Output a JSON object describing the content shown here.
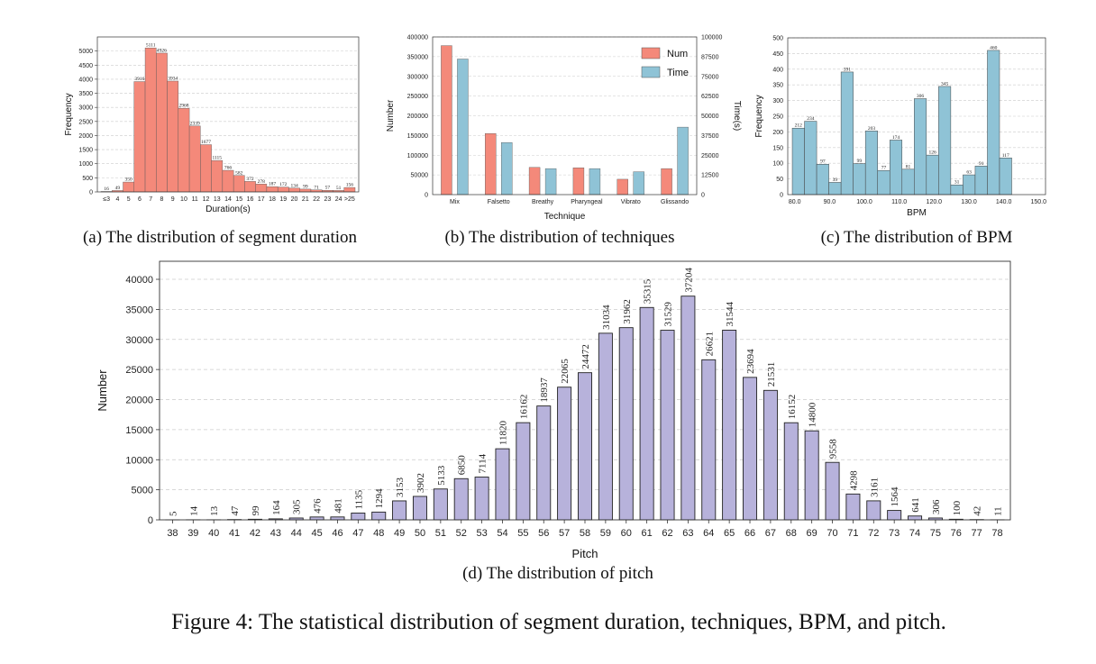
{
  "figure_caption": "Figure 4:  The statistical distribution of segment duration, techniques, BPM, and pitch.",
  "chart_data": [
    {
      "id": "a",
      "type": "bar",
      "caption": "(a) The distribution of segment duration",
      "xlabel": "Duration(s)",
      "ylabel": "Frequency",
      "ylim": [
        0,
        5500
      ],
      "yticks": [
        0,
        500,
        1000,
        1500,
        2000,
        2500,
        3000,
        3500,
        4000,
        4500,
        5000
      ],
      "categories": [
        "≤3",
        "4",
        "5",
        "6",
        "7",
        "8",
        "9",
        "10",
        "11",
        "12",
        "13",
        "14",
        "15",
        "16",
        "17",
        "18",
        "19",
        "20",
        "21",
        "22",
        "23",
        "24",
        ">25"
      ],
      "values": [
        16,
        49,
        350,
        3916,
        5111,
        4926,
        3934,
        2968,
        2339,
        1677,
        1115,
        766,
        582,
        372,
        278,
        187,
        172,
        134,
        99,
        71,
        57,
        51,
        156
      ],
      "color": "#F4897A",
      "grid": true
    },
    {
      "id": "b",
      "type": "bar",
      "caption": "(b) The distribution of techniques",
      "xlabel": "Technique",
      "ylabel": "Number",
      "y2label": "Time(s)",
      "ylim": [
        0,
        400000
      ],
      "y2lim": [
        0,
        100000
      ],
      "yticks": [
        0,
        50000,
        100000,
        150000,
        200000,
        250000,
        300000,
        350000,
        400000
      ],
      "y2ticks": [
        0,
        12500,
        25000,
        37500,
        50000,
        62500,
        75000,
        87500,
        100000
      ],
      "categories": [
        "Mix",
        "Falsetto",
        "Breathy",
        "Pharyngeal",
        "Vibrato",
        "Glissando"
      ],
      "series": [
        {
          "name": "Num",
          "axis": "left",
          "color": "#F4897A",
          "values": [
            378000,
            155000,
            69000,
            68000,
            39000,
            66000
          ]
        },
        {
          "name": "Time",
          "axis": "right",
          "color": "#8FC3D6",
          "values": [
            86000,
            33000,
            16500,
            16500,
            14500,
            42800
          ]
        }
      ],
      "legend": "top-right",
      "grid": true
    },
    {
      "id": "c",
      "type": "bar",
      "caption": "(c) The distribution of BPM",
      "xlabel": "BPM",
      "ylabel": "Frequency",
      "xlim": [
        78,
        152
      ],
      "ylim": [
        0,
        500
      ],
      "yticks": [
        0,
        50,
        100,
        150,
        200,
        250,
        300,
        350,
        400,
        450,
        500
      ],
      "xticks": [
        "80.0",
        "90.0",
        "100.0",
        "110.0",
        "120.0",
        "130.0",
        "140.0",
        "150.0"
      ],
      "bin_start": 79.3,
      "bin_width": 3.5,
      "values": [
        212,
        234,
        97,
        39,
        391,
        99,
        203,
        77,
        174,
        81,
        306,
        126,
        345,
        31,
        63,
        91,
        460,
        117
      ],
      "color": "#8FC3D6",
      "grid": true
    },
    {
      "id": "d",
      "type": "bar",
      "caption": "(d) The distribution of pitch",
      "xlabel": "Pitch",
      "ylabel": "Number",
      "ylim": [
        0,
        43000
      ],
      "yticks": [
        0,
        5000,
        10000,
        15000,
        20000,
        25000,
        30000,
        35000,
        40000
      ],
      "categories": [
        "38",
        "39",
        "40",
        "41",
        "42",
        "43",
        "44",
        "45",
        "46",
        "47",
        "48",
        "49",
        "50",
        "51",
        "52",
        "53",
        "54",
        "55",
        "56",
        "57",
        "58",
        "59",
        "60",
        "61",
        "62",
        "63",
        "64",
        "65",
        "66",
        "67",
        "68",
        "69",
        "70",
        "71",
        "72",
        "73",
        "74",
        "75",
        "76",
        "77",
        "78"
      ],
      "values": [
        5,
        14,
        13,
        47,
        99,
        164,
        305,
        476,
        481,
        1135,
        1294,
        3153,
        3902,
        5133,
        6850,
        7114,
        11820,
        16162,
        18937,
        22065,
        24472,
        31034,
        31962,
        35315,
        31529,
        37204,
        26621,
        31544,
        23694,
        21531,
        16152,
        14800,
        9558,
        4298,
        3161,
        1564,
        641,
        306,
        100,
        42,
        11
      ],
      "color": "#B7B2DB",
      "grid": true
    }
  ]
}
